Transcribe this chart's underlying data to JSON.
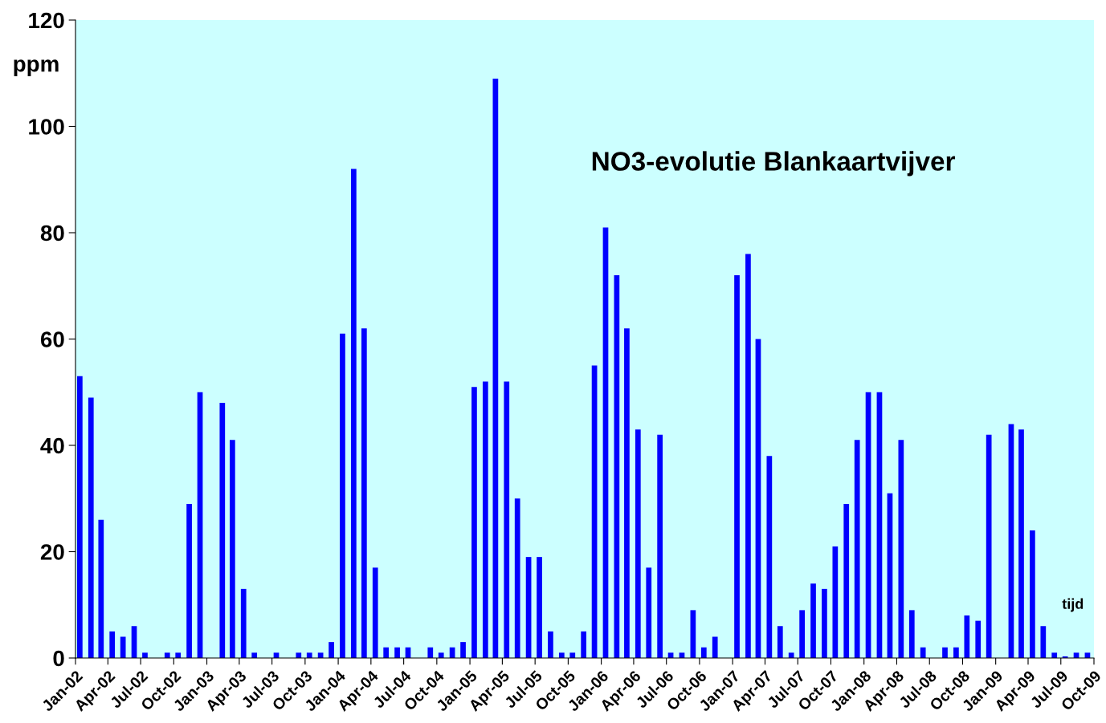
{
  "chart_data": {
    "type": "bar",
    "title": "NO3-evolutie Blankaartvijver",
    "xlabel": "tijd",
    "ylabel": "ppm",
    "x": [
      "2002-01-13",
      "2002-02-13",
      "2002-03-13",
      "2002-04-13",
      "2002-05-13",
      "2002-06-13",
      "2002-07-13",
      "2002-09-13",
      "2002-10-13",
      "2002-11-13",
      "2002-12-13",
      "2003-02-13",
      "2003-03-13",
      "2003-04-13",
      "2003-05-13",
      "2003-07-13",
      "2003-09-13",
      "2003-10-13",
      "2003-11-13",
      "2003-12-13",
      "2004-01-13",
      "2004-02-13",
      "2004-03-13",
      "2004-04-13",
      "2004-05-13",
      "2004-06-13",
      "2004-07-13",
      "2004-09-13",
      "2004-10-13",
      "2004-11-13",
      "2004-12-13",
      "2005-01-13",
      "2005-02-13",
      "2005-03-13",
      "2005-04-13",
      "2005-05-13",
      "2005-06-13",
      "2005-07-13",
      "2005-08-13",
      "2005-09-13",
      "2005-10-13",
      "2005-11-13",
      "2005-12-13",
      "2006-01-13",
      "2006-02-13",
      "2006-03-13",
      "2006-04-13",
      "2006-05-13",
      "2006-06-13",
      "2006-07-13",
      "2006-08-13",
      "2006-09-13",
      "2006-10-13",
      "2006-11-13",
      "2007-01-13",
      "2007-02-13",
      "2007-03-13",
      "2007-04-13",
      "2007-05-13",
      "2007-06-13",
      "2007-07-13",
      "2007-08-13",
      "2007-09-13",
      "2007-10-13",
      "2007-11-13",
      "2007-12-13",
      "2008-01-13",
      "2008-02-13",
      "2008-03-13",
      "2008-04-13",
      "2008-05-13",
      "2008-06-13",
      "2008-08-13",
      "2008-09-13",
      "2008-10-13",
      "2008-11-13",
      "2008-12-13",
      "2009-02-13",
      "2009-03-13",
      "2009-04-13",
      "2009-05-13",
      "2009-06-13",
      "2009-07-13",
      "2009-08-13",
      "2009-09-13"
    ],
    "values": [
      53,
      49,
      26,
      5,
      4,
      6,
      1,
      1,
      1,
      29,
      50,
      48,
      41,
      13,
      1,
      1,
      1,
      1,
      1,
      3,
      61,
      92,
      62,
      17,
      2,
      2,
      2,
      2,
      1,
      2,
      3,
      51,
      52,
      109,
      52,
      30,
      19,
      19,
      5,
      1,
      1,
      5,
      55,
      81,
      72,
      62,
      43,
      17,
      42,
      1,
      1,
      9,
      2,
      4,
      72,
      76,
      60,
      38,
      6,
      1,
      9,
      14,
      13,
      21,
      29,
      41,
      50,
      50,
      31,
      41,
      9,
      2,
      2,
      2,
      8,
      7,
      42,
      44,
      43,
      24,
      6,
      1,
      0.3,
      1,
      1
    ],
    "color": "#0000ff",
    "xlim": [
      "2002-01-01",
      "2009-10-01"
    ],
    "xticks": [
      {
        "value": "2002-01-01",
        "label": "Jan-02"
      },
      {
        "value": "2002-04-01",
        "label": "Apr-02"
      },
      {
        "value": "2002-07-01",
        "label": "Jul-02"
      },
      {
        "value": "2002-10-01",
        "label": "Oct-02"
      },
      {
        "value": "2003-01-01",
        "label": "Jan-03"
      },
      {
        "value": "2003-04-01",
        "label": "Apr-03"
      },
      {
        "value": "2003-07-01",
        "label": "Jul-03"
      },
      {
        "value": "2003-10-01",
        "label": "Oct-03"
      },
      {
        "value": "2004-01-01",
        "label": "Jan-04"
      },
      {
        "value": "2004-04-01",
        "label": "Apr-04"
      },
      {
        "value": "2004-07-01",
        "label": "Jul-04"
      },
      {
        "value": "2004-10-01",
        "label": "Oct-04"
      },
      {
        "value": "2005-01-01",
        "label": "Jan-05"
      },
      {
        "value": "2005-04-01",
        "label": "Apr-05"
      },
      {
        "value": "2005-07-01",
        "label": "Jul-05"
      },
      {
        "value": "2005-10-01",
        "label": "Oct-05"
      },
      {
        "value": "2006-01-01",
        "label": "Jan-06"
      },
      {
        "value": "2006-04-01",
        "label": "Apr-06"
      },
      {
        "value": "2006-07-01",
        "label": "Jul-06"
      },
      {
        "value": "2006-10-01",
        "label": "Oct-06"
      },
      {
        "value": "2007-01-01",
        "label": "Jan-07"
      },
      {
        "value": "2007-04-01",
        "label": "Apr-07"
      },
      {
        "value": "2007-07-01",
        "label": "Jul-07"
      },
      {
        "value": "2007-10-01",
        "label": "Oct-07"
      },
      {
        "value": "2008-01-01",
        "label": "Jan-08"
      },
      {
        "value": "2008-04-01",
        "label": "Apr-08"
      },
      {
        "value": "2008-07-01",
        "label": "Jul-08"
      },
      {
        "value": "2008-10-01",
        "label": "Oct-08"
      },
      {
        "value": "2009-01-01",
        "label": "Jan-09"
      },
      {
        "value": "2009-04-01",
        "label": "Apr-09"
      },
      {
        "value": "2009-07-01",
        "label": "Jul-09"
      },
      {
        "value": "2009-10-01",
        "label": "Oct-09"
      }
    ],
    "ylim": [
      0,
      120
    ],
    "yticks": [
      0,
      20,
      40,
      60,
      80,
      100,
      120
    ],
    "grid": false,
    "legend": false
  }
}
